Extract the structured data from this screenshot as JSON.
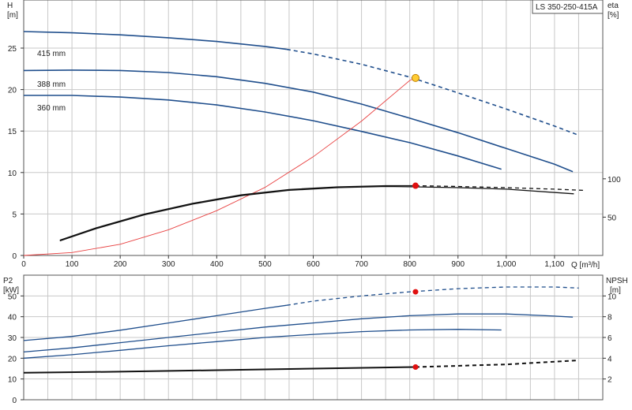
{
  "chart_data": [
    {
      "type": "line",
      "title": "LS 350-250-415A",
      "xlabel": "Q [m³/h]",
      "ylabel_left": [
        "H",
        "[m]"
      ],
      "ylabel_right": [
        "eta",
        "[%]"
      ],
      "x_ticks": [
        0,
        100,
        200,
        300,
        400,
        500,
        600,
        700,
        800,
        900,
        1000,
        1100
      ],
      "x_tick_labels": [
        "0",
        "100",
        "200",
        "300",
        "400",
        "500",
        "600",
        "700",
        "800",
        "900",
        "1,000",
        "1,100"
      ],
      "xlim": [
        0,
        1200
      ],
      "y_left_ticks": [
        0,
        5,
        10,
        15,
        20,
        25
      ],
      "ylim_left": [
        0,
        30.8
      ],
      "y_right_ticks": [
        50,
        100
      ],
      "grid": true,
      "series": [
        {
          "name": "415 mm",
          "axis": "H",
          "color": "#1f4e8c",
          "dash_from_x": 545,
          "x": [
            0,
            100,
            200,
            300,
            400,
            500,
            545,
            600,
            700,
            800,
            900,
            1000,
            1100,
            1150
          ],
          "y": [
            27.0,
            26.85,
            26.6,
            26.25,
            25.8,
            25.2,
            24.85,
            24.3,
            23.05,
            21.5,
            19.6,
            17.65,
            15.6,
            14.5
          ]
        },
        {
          "name": "388 mm",
          "axis": "H",
          "color": "#1f4e8c",
          "x": [
            0,
            100,
            200,
            300,
            400,
            500,
            600,
            700,
            800,
            900,
            1000,
            1100,
            1138
          ],
          "y": [
            22.3,
            22.35,
            22.3,
            22.05,
            21.55,
            20.75,
            19.7,
            18.25,
            16.55,
            14.8,
            12.9,
            11.0,
            10.1
          ]
        },
        {
          "name": "360 mm",
          "axis": "H",
          "color": "#1f4e8c",
          "x": [
            0,
            100,
            200,
            300,
            400,
            500,
            600,
            700,
            800,
            900,
            990
          ],
          "y": [
            19.3,
            19.3,
            19.1,
            18.75,
            18.15,
            17.3,
            16.25,
            14.95,
            13.6,
            12.0,
            10.4
          ]
        },
        {
          "name": "",
          "axis": "H",
          "color": "#e84040",
          "x": [
            0,
            100,
            200,
            300,
            400,
            500,
            600,
            700,
            800,
            812
          ],
          "y": [
            0,
            0.35,
            1.35,
            3.1,
            5.4,
            8.2,
            11.9,
            16.2,
            21.1,
            21.4
          ]
        },
        {
          "name": "",
          "axis": "eta",
          "color": "#111111",
          "dash_from_x": 800,
          "x": [
            75,
            150,
            250,
            350,
            450,
            550,
            650,
            750,
            812,
            900,
            1000,
            1100,
            1160
          ],
          "y": [
            20,
            36,
            54,
            68,
            79,
            86,
            89.5,
            91,
            91,
            90,
            88.5,
            86.5,
            85
          ]
        },
        {
          "name": "",
          "axis": "eta",
          "color": "#111111",
          "x": [
            75,
            150,
            250,
            350,
            450,
            550,
            650,
            750,
            812,
            900,
            1000,
            1140
          ],
          "y": [
            19,
            35,
            53,
            67,
            78,
            85,
            88.5,
            90,
            89.5,
            88.5,
            86.5,
            80.5
          ]
        }
      ],
      "markers": [
        {
          "x": 812,
          "y": 21.4,
          "axis": "H",
          "color": "#ffcc33"
        },
        {
          "x": 812,
          "y": 91,
          "axis": "eta",
          "color": "#e01010"
        }
      ]
    },
    {
      "type": "line",
      "ylabel_left": [
        "P2",
        "[kW]"
      ],
      "ylabel_right": [
        "NPSH",
        "[m]"
      ],
      "xlim": [
        0,
        1200
      ],
      "y_left_ticks": [
        0,
        10,
        20,
        30,
        40,
        50
      ],
      "ylim_left": [
        0,
        60
      ],
      "y_right_ticks": [
        2,
        4,
        6,
        8,
        10
      ],
      "ylim_right": [
        0,
        12
      ],
      "grid": true,
      "series": [
        {
          "name": "",
          "axis": "P2",
          "color": "#1f4e8c",
          "dash_from_x": 545,
          "x": [
            0,
            100,
            200,
            300,
            400,
            500,
            545,
            600,
            700,
            800,
            900,
            1000,
            1100,
            1150
          ],
          "y": [
            28.5,
            30.5,
            33.5,
            37,
            40.5,
            44,
            45.5,
            47.5,
            50,
            52,
            53.5,
            54.3,
            54.3,
            53.8
          ]
        },
        {
          "name": "",
          "axis": "P2",
          "color": "#1f4e8c",
          "x": [
            0,
            100,
            200,
            300,
            400,
            500,
            600,
            700,
            800,
            900,
            1000,
            1100,
            1138
          ],
          "y": [
            23,
            25,
            27.5,
            30,
            32.5,
            35,
            37,
            39,
            40.5,
            41.3,
            41.3,
            40.3,
            39.8
          ]
        },
        {
          "name": "",
          "axis": "P2",
          "color": "#1f4e8c",
          "x": [
            0,
            100,
            200,
            300,
            400,
            500,
            600,
            700,
            800,
            900,
            990
          ],
          "y": [
            20,
            21.7,
            23.8,
            26,
            28,
            30,
            31.5,
            32.8,
            33.6,
            33.9,
            33.6
          ]
        },
        {
          "name": "",
          "axis": "NPSH",
          "color": "#111111",
          "dash_from_x": 700,
          "x": [
            0,
            200,
            400,
            600,
            812,
            1000,
            1150
          ],
          "y": [
            2.6,
            2.7,
            2.85,
            3.0,
            3.15,
            3.4,
            3.8
          ]
        }
      ],
      "markers": [
        {
          "x": 812,
          "y": 52,
          "axis": "P2",
          "color": "#e01010"
        },
        {
          "x": 812,
          "y": 3.15,
          "axis": "NPSH",
          "color": "#e01010"
        }
      ]
    }
  ]
}
